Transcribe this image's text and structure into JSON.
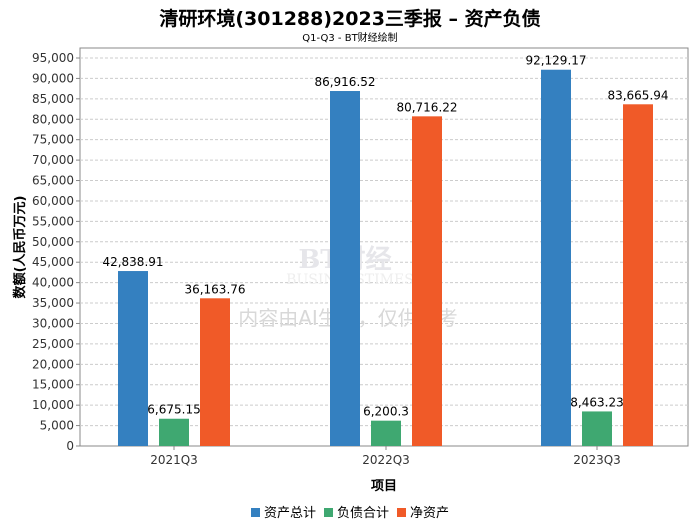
{
  "title": "清研环境(301288)2023三季报 – 资产负债",
  "subtitle": "Q1-Q3 - BT财经绘制",
  "watermark": {
    "logo": "BT财经 BUSINESSTIMES",
    "notice": "内容由AI生成，仅供参考"
  },
  "chart_data": {
    "type": "bar",
    "xlabel": "项目",
    "ylabel": "数额(人民币万元)",
    "categories": [
      "2021Q3",
      "2022Q3",
      "2023Q3"
    ],
    "ylim": [
      0,
      95000
    ],
    "yticks": [
      "0",
      "5,000",
      "10,000",
      "15,000",
      "20,000",
      "25,000",
      "30,000",
      "35,000",
      "40,000",
      "45,000",
      "50,000",
      "55,000",
      "60,000",
      "65,000",
      "70,000",
      "75,000",
      "80,000",
      "85,000",
      "90,000",
      "95,000"
    ],
    "grid": true,
    "legend": "bottom",
    "series": [
      {
        "name": "资产总计",
        "color": "#3480c0",
        "values": [
          42838.91,
          86916.52,
          92129.17
        ],
        "labels": [
          "42,838.91",
          "86,916.52",
          "92,129.17"
        ]
      },
      {
        "name": "负债合计",
        "color": "#3fa871",
        "values": [
          6675.15,
          6200.3,
          8463.23
        ],
        "labels": [
          "6,675.15",
          "6,200.3",
          "8,463.23"
        ]
      },
      {
        "name": "净资产",
        "color": "#f05a28",
        "values": [
          36163.76,
          80716.22,
          83665.94
        ],
        "labels": [
          "36,163.76",
          "80,716.22",
          "83,665.94"
        ]
      }
    ]
  }
}
